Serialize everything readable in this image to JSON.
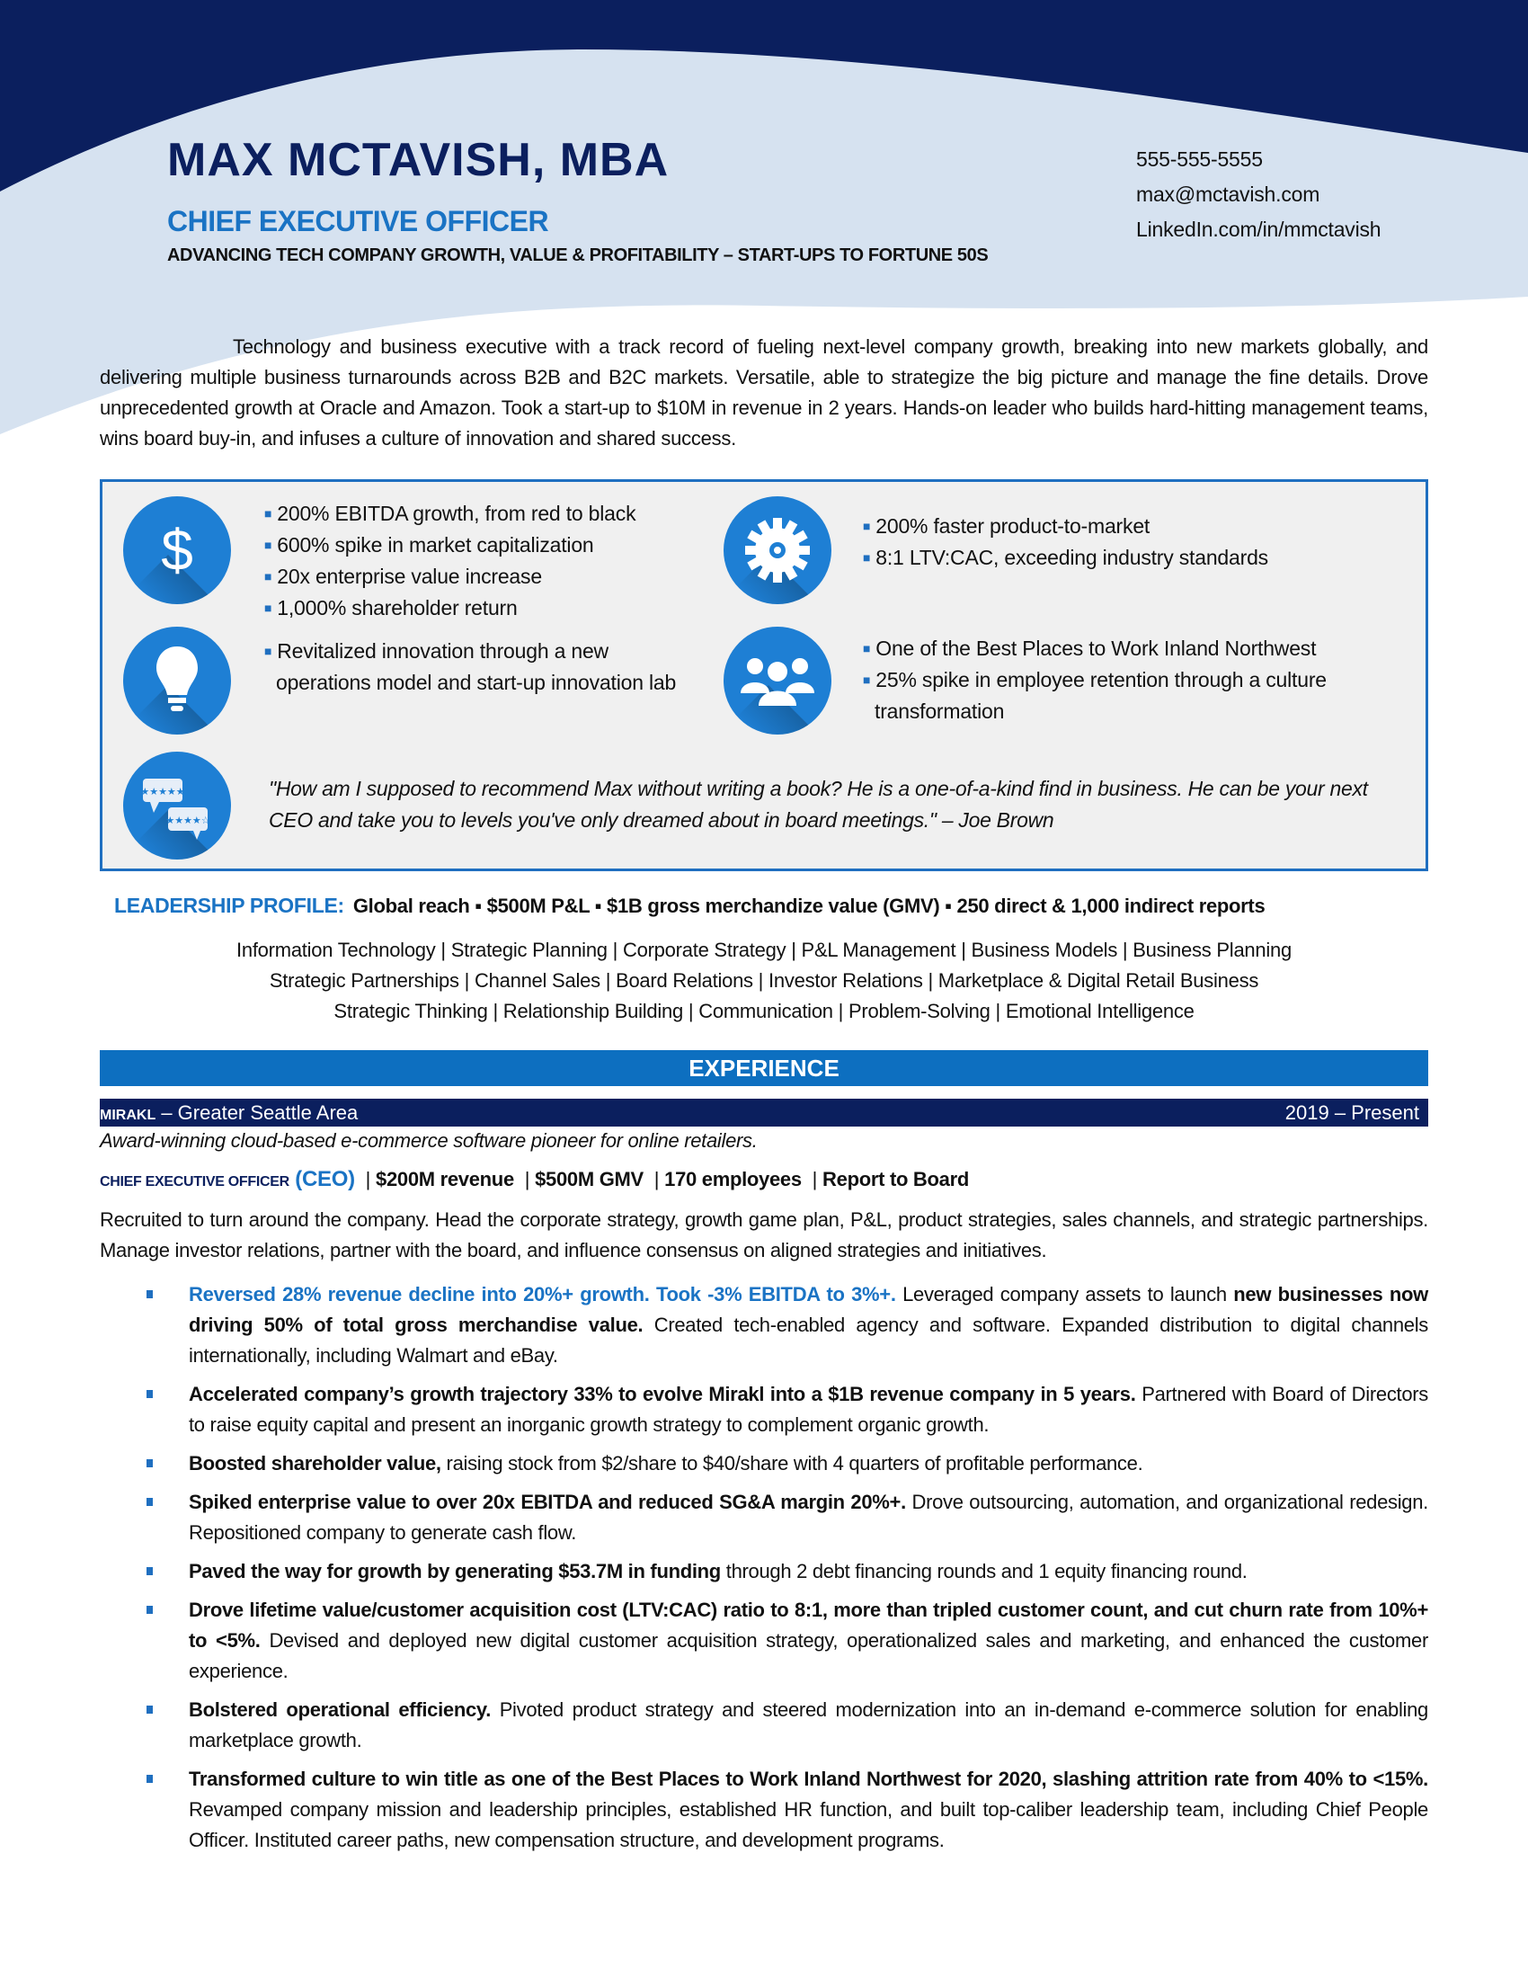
{
  "header": {
    "name": "MAX MCTAVISH, MBA",
    "title": "CHIEF EXECUTIVE OFFICER",
    "tagline": "ADVANCING TECH COMPANY GROWTH, VALUE & PROFITABILITY – START-UPS TO FORTUNE 50S",
    "phone": "555-555-5555",
    "email": "max@mctavish.com",
    "linkedin": "LinkedIn.com/in/mmctavish"
  },
  "colors": {
    "navy": "#0b1f5e",
    "accent": "#1a73c4",
    "light_wave": "#d6e2f0",
    "box_bg": "#f0f0f0"
  },
  "summary": "Technology and business executive with a track record of fueling next-level company growth, breaking into new markets globally, and delivering multiple business turnarounds across B2B and B2C markets. Versatile, able to strategize the big picture and manage the fine details. Drove unprecedented growth at Oracle and Amazon. Took a start-up to $10M in revenue in 2 years. Hands-on leader who builds hard-hitting management teams, wins board buy-in, and infuses a culture of innovation and shared success.",
  "highlights": {
    "finance": {
      "icon": "dollar-icon",
      "items": [
        "200% EBITDA growth, from red to black",
        "600% spike in market capitalization",
        "20x enterprise value increase",
        "1,000% shareholder return"
      ]
    },
    "operations": {
      "icon": "gear-icon",
      "items": [
        "200% faster product-to-market",
        "8:1 LTV:CAC, exceeding industry standards"
      ]
    },
    "innovation": {
      "icon": "lightbulb-icon",
      "items": [
        "Revitalized innovation through a new operations model and start-up innovation lab"
      ]
    },
    "culture": {
      "icon": "team-icon",
      "items": [
        "One of the Best Places to Work Inland Northwest",
        "25% spike in employee retention through a culture transformation"
      ]
    },
    "testimonial": {
      "icon": "review-bubbles-icon",
      "quote": "\"How am I supposed to recommend Max without writing a book? He is a one-of-a-kind find in business. He can be your next CEO and take you to levels you've only dreamed about in board meetings.\" – Joe Brown"
    }
  },
  "leadership": {
    "label": "LEADERSHIP PROFILE:",
    "text": "Global reach ▪ $500M P&L ▪ $1B gross merchandize value (GMV) ▪ 250 direct & 1,000 indirect reports",
    "skills_lines": [
      "Information Technology | Strategic Planning | Corporate Strategy | P&L Management | Business Models | Business Planning",
      "Strategic Partnerships | Channel Sales | Board Relations | Investor Relations | Marketplace & Digital Retail Business",
      "Strategic Thinking | Relationship Building | Communication | Problem-Solving | Emotional Intelligence"
    ]
  },
  "experience": {
    "heading": "EXPERIENCE",
    "company": "MIRAKL",
    "location": " – Greater Seattle Area",
    "dates": "2019 – Present",
    "description": "Award-winning cloud-based e-commerce software pioneer for online retailers.",
    "role_title": "CHIEF EXECUTIVE OFFICER",
    "role_abbr": " (CEO)",
    "role_facts": [
      "$200M revenue",
      "$500M GMV",
      "170 employees",
      "Report to Board"
    ],
    "overview": "Recruited to turn around the company. Head the corporate strategy, growth game plan, P&L, product strategies, sales channels, and strategic partnerships. Manage investor relations, partner with the board, and influence consensus on aligned strategies and initiatives.",
    "bullets": [
      [
        "Reversed 28% revenue decline into 20%+ growth. Took -3% EBITDA to 3%+.",
        " Leveraged company assets to launch ",
        "new businesses now driving 50% of total gross merchandise value.",
        " Created tech-enabled agency and software. Expanded distribution to digital channels internationally, including Walmart and eBay."
      ],
      [
        "Accelerated company’s growth trajectory 33% to evolve Mirakl into a $1B revenue company in 5 years.",
        " Partnered with Board of Directors to raise equity capital and present an inorganic growth strategy to complement organic growth."
      ],
      [
        "Boosted shareholder value,",
        " raising stock from $2/share to $40/share with 4 quarters of profitable performance."
      ],
      [
        "Spiked enterprise value to over 20x EBITDA and reduced SG&A margin 20%+.",
        " Drove outsourcing, automation, and organizational redesign. Repositioned company to generate cash flow."
      ],
      [
        "Paved the way for growth by generating $53.7M in funding",
        " through 2 debt financing rounds and 1 equity financing round."
      ],
      [
        "Drove lifetime value/customer acquisition cost (LTV:CAC) ratio to 8:1, more than tripled customer count, and cut churn rate from 10%+ to <5%.",
        " Devised and deployed new digital customer acquisition strategy, operationalized sales and marketing, and enhanced the customer experience."
      ],
      [
        "Bolstered operational efficiency.",
        " Pivoted product strategy and steered modernization into an in-demand e-commerce solution for enabling marketplace growth."
      ],
      [
        "Transformed culture to win title as one of the Best Places to Work Inland Northwest for 2020, slashing attrition rate from 40% to <15%.",
        " Revamped company mission and leadership principles, established HR function, and built top-caliber leadership team, including Chief People Officer. Instituted career paths, new compensation structure, and development programs."
      ]
    ]
  }
}
